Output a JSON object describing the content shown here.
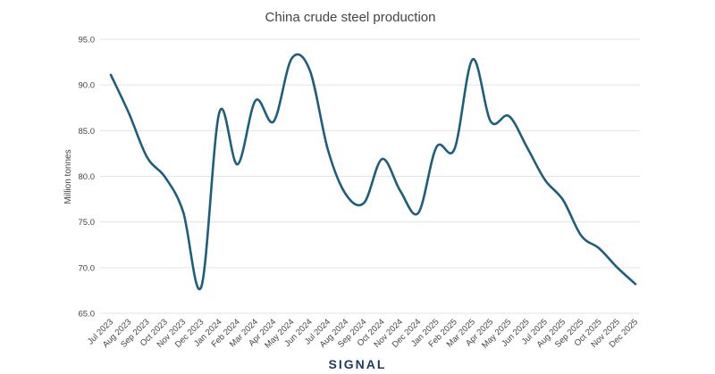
{
  "chart_data": {
    "type": "line",
    "title": "China crude steel production",
    "xlabel": "",
    "ylabel": "Million tonnes",
    "ylim": [
      65.0,
      95.0
    ],
    "yticks": [
      "95.0",
      "90.0",
      "85.0",
      "80.0",
      "75.0",
      "70.0",
      "65.0"
    ],
    "grid": true,
    "categories": [
      "Jul 2023",
      "Aug 2023",
      "Sep 2023",
      "Oct 2023",
      "Nov 2023",
      "Dec 2023",
      "Jan 2024",
      "Feb 2024",
      "Mar 2024",
      "Apr 2024",
      "May 2024",
      "Jun 2024",
      "Jul 2024",
      "Aug 2024",
      "Sep 2024",
      "Oct 2024",
      "Nov 2024",
      "Dec 2024",
      "Jan 2025",
      "Feb 2025",
      "Mar 2025",
      "Apr 2025",
      "May 2025",
      "Jun 2025",
      "Jul 2025",
      "Aug 2025",
      "Sep 2025",
      "Oct 2025",
      "Nov 2025",
      "Dec 2025"
    ],
    "series": [
      {
        "name": "China crude steel production",
        "color": "#1d5e7d",
        "values": [
          91.1,
          86.9,
          82.1,
          79.9,
          76.1,
          67.9,
          87.0,
          81.3,
          88.3,
          86.0,
          92.9,
          91.6,
          82.9,
          78.0,
          77.1,
          81.9,
          78.4,
          76.0,
          83.2,
          83.0,
          92.8,
          86.0,
          86.6,
          83.2,
          79.6,
          77.4,
          73.5,
          72.1,
          70.0,
          68.2
        ]
      }
    ]
  },
  "branding": {
    "logo_text": "SIGNAL"
  }
}
